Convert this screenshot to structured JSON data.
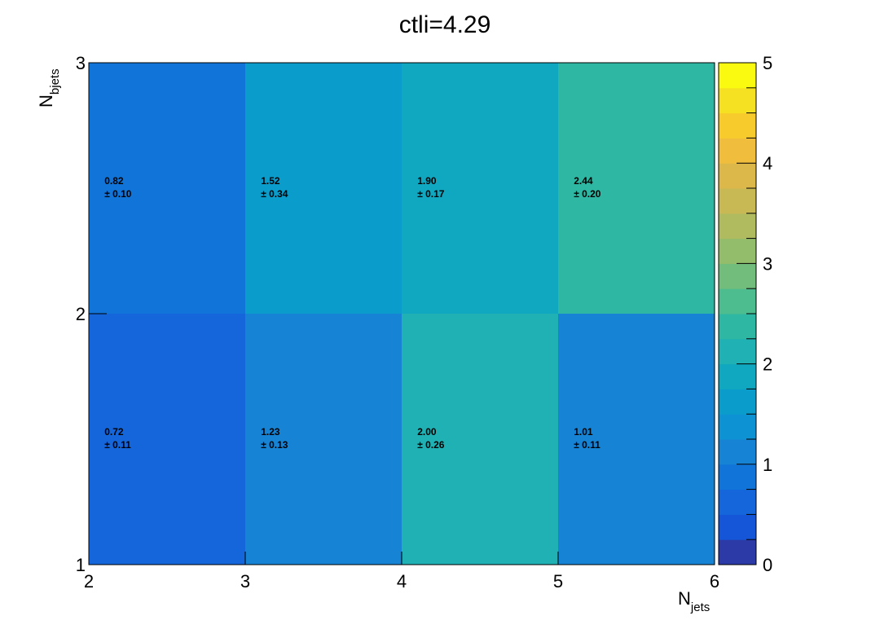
{
  "chart_data": {
    "type": "heatmap",
    "title": "ctli=4.29",
    "xlabel": {
      "main": "N",
      "sub": "jets"
    },
    "ylabel": {
      "main": "N",
      "sub": "bjets"
    },
    "x_edges": [
      2,
      3,
      4,
      5,
      6
    ],
    "y_edges": [
      1,
      2,
      3
    ],
    "x_ticks": [
      "2",
      "3",
      "4",
      "5",
      "6"
    ],
    "y_ticks": [
      "1",
      "2",
      "3"
    ],
    "xlim": [
      2,
      6
    ],
    "ylim": [
      1,
      3
    ],
    "cells": [
      {
        "x": [
          2,
          3
        ],
        "y": [
          1,
          2
        ],
        "value": "0.72",
        "error": "± 0.11",
        "v": 0.72
      },
      {
        "x": [
          3,
          4
        ],
        "y": [
          1,
          2
        ],
        "value": "1.23",
        "error": "± 0.13",
        "v": 1.23
      },
      {
        "x": [
          4,
          5
        ],
        "y": [
          1,
          2
        ],
        "value": "2.00",
        "error": "± 0.26",
        "v": 2.0
      },
      {
        "x": [
          5,
          6
        ],
        "y": [
          1,
          2
        ],
        "value": "1.01",
        "error": "± 0.11",
        "v": 1.01
      },
      {
        "x": [
          2,
          3
        ],
        "y": [
          2,
          3
        ],
        "value": "0.82",
        "error": "± 0.10",
        "v": 0.82
      },
      {
        "x": [
          3,
          4
        ],
        "y": [
          2,
          3
        ],
        "value": "1.52",
        "error": "± 0.34",
        "v": 1.52
      },
      {
        "x": [
          4,
          5
        ],
        "y": [
          2,
          3
        ],
        "value": "1.90",
        "error": "± 0.17",
        "v": 1.9
      },
      {
        "x": [
          5,
          6
        ],
        "y": [
          2,
          3
        ],
        "value": "2.44",
        "error": "± 0.20",
        "v": 2.44
      }
    ],
    "colorbar": {
      "range": [
        0,
        5
      ],
      "ticks": [
        "0",
        "1",
        "2",
        "3",
        "4",
        "5"
      ],
      "levels": 20,
      "palette": [
        "#2b3aa6",
        "#1556d8",
        "#1566db",
        "#1174d8",
        "#1683d5",
        "#0d92d3",
        "#0a9dcc",
        "#10a8c0",
        "#1fb1b3",
        "#2eb8a3",
        "#4dbc8f",
        "#72bd7c",
        "#93bd6b",
        "#b0bb5f",
        "#c8b955",
        "#dcb84b",
        "#f0bd3c",
        "#f8cb2c",
        "#f6e022",
        "#f9fa0f"
      ],
      "grid": false
    },
    "grid": false
  }
}
